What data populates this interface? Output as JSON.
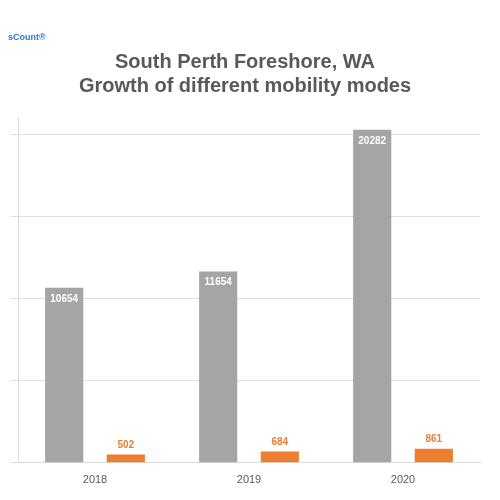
{
  "chart_data": {
    "type": "bar",
    "title": [
      "South Perth Foreshore, WA",
      "Growth of different mobility modes"
    ],
    "annotations": [
      "sCount®"
    ],
    "categories": [
      "2018",
      "2019",
      "2020"
    ],
    "series": [
      {
        "color": "#a5a5a5",
        "values": [
          10654,
          11654,
          20282
        ]
      },
      {
        "color": "#ed7d31",
        "values": [
          502,
          684,
          861
        ]
      }
    ],
    "ylim": [
      0,
      21000
    ],
    "yticks": [
      0,
      5000,
      10000,
      15000,
      20000
    ],
    "grid": true,
    "tick_labels": "x",
    "data_labels": true
  }
}
